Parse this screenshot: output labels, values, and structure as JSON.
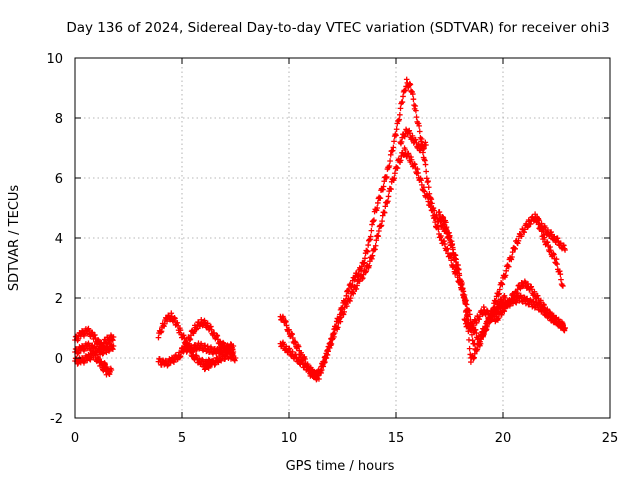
{
  "chart_data": {
    "type": "scatter",
    "title": "Day 136 of 2024, Sidereal Day-to-day VTEC variation (SDTVAR) for receiver ohi3",
    "xlabel": "GPS time / hours",
    "ylabel": "SDTVAR / TECUs",
    "xlim": [
      0,
      25
    ],
    "ylim": [
      -2,
      10
    ],
    "xticks": [
      0,
      5,
      10,
      15,
      20,
      25
    ],
    "yticks": [
      -2,
      0,
      2,
      4,
      6,
      8,
      10
    ],
    "grid": true,
    "legend": "none",
    "marker": "+",
    "series": [
      {
        "name": "SDTVAR",
        "color": "#ff0000",
        "segments": [
          {
            "x": [
              0.0,
              0.3,
              0.6,
              0.9,
              1.2,
              1.5,
              1.8
            ],
            "y": [
              0.6,
              0.8,
              0.9,
              0.7,
              0.4,
              0.6,
              0.7
            ]
          },
          {
            "x": [
              0.0,
              0.3,
              0.6,
              0.9,
              1.2,
              1.5,
              1.8
            ],
            "y": [
              0.2,
              0.3,
              0.4,
              0.3,
              0.2,
              0.3,
              0.4
            ]
          },
          {
            "x": [
              0.0,
              0.3,
              0.6,
              0.9,
              1.2,
              1.5
            ],
            "y": [
              -0.1,
              -0.1,
              0.0,
              0.1,
              -0.2,
              -0.3
            ]
          },
          {
            "x": [
              1.3,
              1.5,
              1.7
            ],
            "y": [
              -0.3,
              -0.5,
              -0.4
            ]
          },
          {
            "x": [
              3.9,
              4.1,
              4.3,
              4.5,
              4.7,
              4.9,
              5.2,
              5.5,
              5.8,
              6.1,
              6.4
            ],
            "y": [
              0.7,
              1.1,
              1.3,
              1.4,
              1.2,
              0.9,
              0.5,
              0.1,
              -0.1,
              -0.2,
              -0.1
            ]
          },
          {
            "x": [
              3.9,
              4.2,
              4.5,
              4.9,
              5.3,
              5.6,
              5.9,
              6.2,
              6.5,
              6.8,
              7.1,
              7.4
            ],
            "y": [
              -0.1,
              -0.2,
              -0.1,
              0.1,
              0.6,
              1.0,
              1.2,
              1.1,
              0.8,
              0.5,
              0.3,
              0.2
            ]
          },
          {
            "x": [
              5.0,
              5.4,
              5.8,
              6.2,
              6.6,
              7.0,
              7.4
            ],
            "y": [
              0.3,
              0.3,
              0.4,
              0.3,
              0.2,
              0.3,
              0.4
            ]
          },
          {
            "x": [
              6.0,
              6.4,
              6.8,
              7.2,
              7.5
            ],
            "y": [
              -0.3,
              -0.2,
              0.0,
              0.1,
              0.0
            ]
          },
          {
            "x": [
              9.6,
              9.8,
              10.0,
              10.3,
              10.6,
              10.9,
              11.2
            ],
            "y": [
              1.4,
              1.2,
              0.9,
              0.5,
              0.1,
              -0.3,
              -0.6
            ]
          },
          {
            "x": [
              9.6,
              9.9,
              10.2,
              10.5,
              10.8,
              11.1,
              11.4
            ],
            "y": [
              0.5,
              0.3,
              0.1,
              -0.1,
              -0.3,
              -0.5,
              -0.7
            ]
          },
          {
            "x": [
              11.0,
              11.3,
              11.6,
              11.9,
              12.2,
              12.5,
              12.8,
              13.1,
              13.4,
              13.7,
              14.0,
              14.3,
              14.6,
              15.0,
              15.3,
              15.5,
              15.7,
              15.9,
              16.2,
              16.5,
              16.8,
              17.1,
              17.4,
              17.7,
              18.0,
              18.3,
              18.6,
              18.9,
              19.2,
              19.5,
              19.8,
              20.1
            ],
            "y": [
              -0.5,
              -0.6,
              -0.2,
              0.4,
              1.1,
              1.7,
              2.3,
              2.7,
              3.0,
              3.7,
              4.8,
              5.5,
              6.2,
              7.5,
              8.6,
              9.2,
              9.0,
              8.3,
              7.2,
              5.8,
              4.6,
              4.0,
              3.6,
              3.0,
              2.5,
              1.8,
              1.0,
              0.6,
              1.0,
              1.5,
              1.8,
              2.0
            ]
          },
          {
            "x": [
              11.5,
              11.8,
              12.1,
              12.4,
              12.7,
              13.0,
              13.3,
              13.6,
              13.9,
              14.2,
              14.5,
              14.8,
              15.1,
              15.4,
              15.7,
              16.0,
              16.3,
              16.6,
              16.9,
              17.2,
              17.5,
              17.8,
              18.1,
              18.4,
              18.7
            ],
            "y": [
              -0.4,
              0.2,
              0.8,
              1.3,
              1.8,
              2.2,
              2.6,
              2.9,
              3.4,
              4.2,
              5.0,
              5.8,
              6.5,
              6.9,
              6.6,
              6.2,
              5.6,
              5.1,
              4.7,
              4.4,
              4.0,
              3.2,
              2.3,
              1.2,
              0.3
            ]
          },
          {
            "x": [
              15.2,
              15.5,
              15.8,
              16.1,
              16.4
            ],
            "y": [
              7.2,
              7.6,
              7.3,
              7.0,
              7.1
            ]
          },
          {
            "x": [
              17.0,
              17.3,
              17.6,
              17.9,
              18.2,
              18.5
            ],
            "y": [
              4.8,
              4.5,
              3.8,
              3.0,
              2.0,
              0.0
            ]
          },
          {
            "x": [
              18.5,
              18.8,
              19.1,
              19.4,
              19.7,
              20.0,
              20.3,
              20.6,
              20.9,
              21.2,
              21.5,
              21.8,
              22.1,
              22.4,
              22.7,
              22.9
            ],
            "y": [
              -0.1,
              0.3,
              0.8,
              1.4,
              2.0,
              2.6,
              3.2,
              3.8,
              4.2,
              4.5,
              4.7,
              4.4,
              4.2,
              4.0,
              3.8,
              3.6
            ]
          },
          {
            "x": [
              21.6,
              21.9,
              22.2,
              22.5,
              22.8
            ],
            "y": [
              4.6,
              4.0,
              3.6,
              3.2,
              2.4
            ]
          },
          {
            "x": [
              18.2,
              18.5,
              18.8,
              19.1,
              19.4,
              19.7,
              20.0,
              20.3,
              20.6,
              20.9,
              21.2,
              21.5,
              21.8,
              22.1,
              22.4,
              22.7,
              22.9
            ],
            "y": [
              1.2,
              1.0,
              1.3,
              1.6,
              1.4,
              1.3,
              1.6,
              1.9,
              2.2,
              2.5,
              2.4,
              2.1,
              1.8,
              1.5,
              1.3,
              1.1,
              1.0
            ]
          },
          {
            "x": [
              19.0,
              19.3,
              19.6,
              19.9,
              20.2,
              20.5,
              20.8,
              21.1,
              21.4,
              21.7,
              22.0,
              22.3,
              22.6,
              22.9
            ],
            "y": [
              0.8,
              1.2,
              1.5,
              1.7,
              1.8,
              1.9,
              2.0,
              1.9,
              1.8,
              1.7,
              1.5,
              1.3,
              1.2,
              1.0
            ]
          }
        ]
      }
    ]
  }
}
